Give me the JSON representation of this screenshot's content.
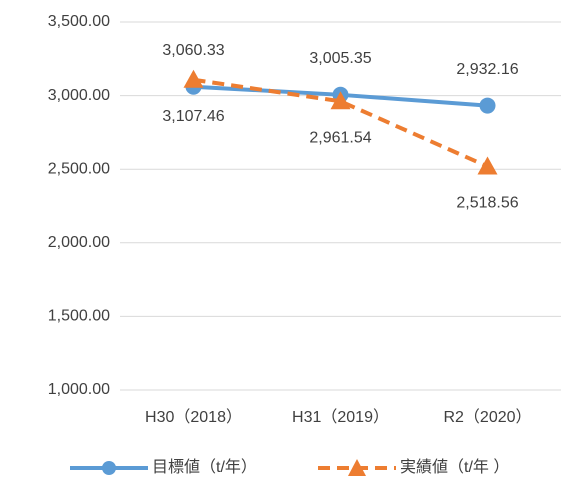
{
  "chart_data": {
    "type": "line",
    "categories": [
      "H30（2018）",
      "H31（2019）",
      "R2（2020）"
    ],
    "series": [
      {
        "name": "目標値（t/年）",
        "color": "#5b9bd5",
        "marker": "circle",
        "dash": false,
        "values": [
          3060.33,
          3005.35,
          2932.16
        ],
        "value_labels": [
          "3,060.33",
          "3,005.35",
          "2,932.16"
        ]
      },
      {
        "name": "実績値（t/年 ）",
        "color": "#ed7d31",
        "marker": "triangle",
        "dash": true,
        "values": [
          3107.46,
          2961.54,
          2518.56
        ],
        "value_labels": [
          "3,107.46",
          "2,961.54",
          "2,518.56"
        ]
      }
    ],
    "ylim": [
      1000,
      3500
    ],
    "yticks": [
      {
        "value": 1000,
        "label": "1,000.00"
      },
      {
        "value": 1500,
        "label": "1,500.00"
      },
      {
        "value": 2000,
        "label": "2,000.00"
      },
      {
        "value": 2500,
        "label": "2,500.00"
      },
      {
        "value": 3000,
        "label": "3,000.00"
      },
      {
        "value": 3500,
        "label": "3,500.00"
      }
    ],
    "grid": true,
    "legend": "bottom"
  }
}
